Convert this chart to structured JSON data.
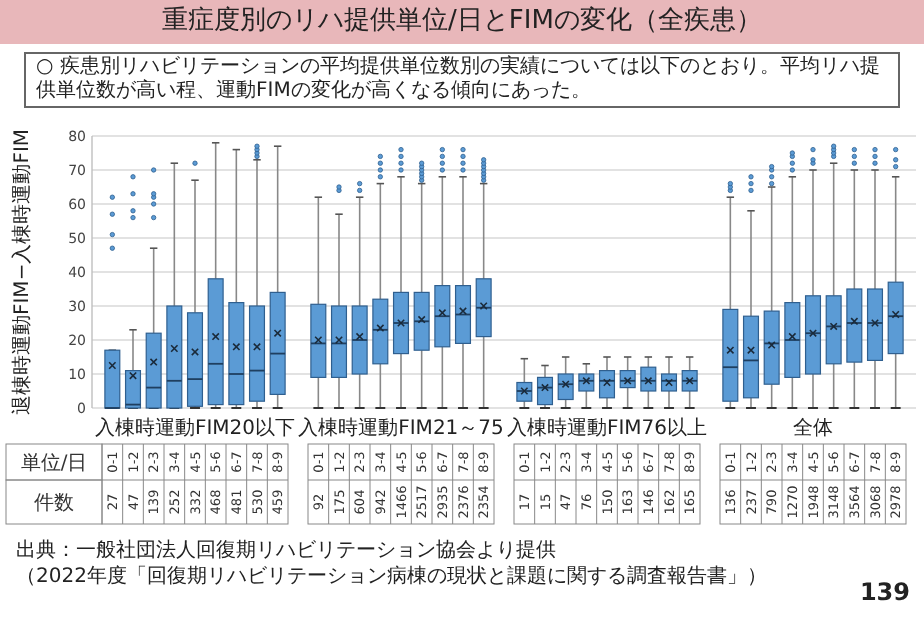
{
  "chart_data": [
    {
      "type": "box",
      "title": "重症度別のリハ提供単位/日とFIMの変化（全疾患）",
      "subtitle": "○ 疾患別リハビリテーションの平均提供単位数別の実績については以下のとおり。平均リハ提供単位数が高い程、運動FIMの変化が高くなる傾向にあった。",
      "xlabel": "入棟時運動FIM20以下",
      "ylabel": "退棟時運動FIM−入棟時運動FIM",
      "categories": [
        "0-1",
        "1-2",
        "2-3",
        "3-4",
        "4-5",
        "5-6",
        "6-7",
        "7-8",
        "8-9"
      ],
      "ylim": [
        0,
        80
      ],
      "yticks": [
        0,
        10,
        20,
        30,
        40,
        50,
        60,
        70,
        80
      ],
      "grid": "y",
      "series": [
        {
          "color": "#5b9bd5",
          "boxes": [
            {
              "low": 0,
              "q1": 0,
              "median": 0,
              "q3": 17,
              "high": 17,
              "mean": 12.5,
              "outliers": [
                47,
                51,
                57,
                62
              ]
            },
            {
              "low": 0,
              "q1": 0,
              "median": 1,
              "q3": 11,
              "high": 23,
              "mean": 9.5,
              "outliers": [
                56,
                58,
                63,
                68
              ]
            },
            {
              "low": 0,
              "q1": 0,
              "median": 6,
              "q3": 22,
              "high": 47,
              "mean": 13.5,
              "outliers": [
                56,
                60,
                62,
                63,
                70
              ]
            },
            {
              "low": 0,
              "q1": 0,
              "median": 8,
              "q3": 30,
              "high": 72,
              "mean": 17.5
            },
            {
              "low": 0,
              "q1": 0.5,
              "median": 8.5,
              "q3": 28,
              "high": 67,
              "mean": 16.5,
              "outliers": [
                72
              ]
            },
            {
              "low": 0,
              "q1": 1,
              "median": 13,
              "q3": 38,
              "high": 78,
              "mean": 21
            },
            {
              "low": 0,
              "q1": 1,
              "median": 10,
              "q3": 31,
              "high": 76,
              "mean": 18
            },
            {
              "low": 0,
              "q1": 2,
              "median": 11,
              "q3": 30,
              "high": 73,
              "mean": 18,
              "outliers": [
                74,
                75,
                76,
                77
              ]
            },
            {
              "low": 0,
              "q1": 4,
              "median": 16,
              "q3": 34,
              "high": 77,
              "mean": 22
            }
          ]
        }
      ],
      "annotations": [
        "単位/日",
        "件数",
        "27",
        "47",
        "139",
        "252",
        "332",
        "468",
        "481",
        "530",
        "459"
      ]
    },
    {
      "type": "box",
      "xlabel": "入棟時運動FIM21～75",
      "categories": [
        "0-1",
        "1-2",
        "2-3",
        "3-4",
        "4-5",
        "5-6",
        "6-7",
        "7-8",
        "8-9"
      ],
      "ylim": [
        0,
        80
      ],
      "yticks": [
        0,
        10,
        20,
        30,
        40,
        50,
        60,
        70,
        80
      ],
      "grid": "y",
      "tick_labels": "x",
      "series": [
        {
          "color": "#5b9bd5",
          "boxes": [
            {
              "low": 0,
              "q1": 9,
              "median": 19,
              "q3": 30.5,
              "high": 62,
              "mean": 20
            },
            {
              "low": 0,
              "q1": 9,
              "median": 19,
              "q3": 30,
              "high": 57,
              "mean": 20,
              "outliers": [
                64,
                65
              ]
            },
            {
              "low": 0,
              "q1": 10,
              "median": 20,
              "q3": 30,
              "high": 62,
              "mean": 21,
              "outliers": [
                64,
                66
              ]
            },
            {
              "low": 0,
              "q1": 13,
              "median": 23,
              "q3": 32,
              "high": 66,
              "mean": 23.5,
              "outliers": [
                68,
                70,
                72,
                74
              ]
            },
            {
              "low": 0,
              "q1": 16,
              "median": 25,
              "q3": 34,
              "high": 68,
              "mean": 25,
              "outliers": [
                70,
                72,
                74,
                76
              ]
            },
            {
              "low": 0,
              "q1": 17,
              "median": 25.5,
              "q3": 34,
              "high": 66,
              "mean": 26,
              "outliers": [
                67,
                68,
                69,
                70,
                71,
                72
              ]
            },
            {
              "low": 0,
              "q1": 18,
              "median": 27,
              "q3": 36,
              "high": 68,
              "mean": 28,
              "outliers": [
                70,
                72,
                74,
                76
              ]
            },
            {
              "low": 0,
              "q1": 19,
              "median": 27.5,
              "q3": 36,
              "high": 68,
              "mean": 28.5,
              "outliers": [
                70,
                72,
                74,
                76
              ]
            },
            {
              "low": 0,
              "q1": 21,
              "median": 29.5,
              "q3": 38,
              "high": 66,
              "mean": 30,
              "outliers": [
                67,
                68,
                69,
                70,
                71,
                72,
                73
              ]
            }
          ]
        }
      ],
      "annotations": [
        "92",
        "175",
        "604",
        "942",
        "1466",
        "2517",
        "2935",
        "2376",
        "2354"
      ]
    },
    {
      "type": "box",
      "xlabel": "入棟時運動FIM76以上",
      "categories": [
        "0-1",
        "1-2",
        "2-3",
        "3-4",
        "4-5",
        "5-6",
        "6-7",
        "7-8",
        "8-9"
      ],
      "ylim": [
        0,
        80
      ],
      "yticks": [
        0,
        10,
        20,
        30,
        40,
        50,
        60,
        70,
        80
      ],
      "grid": "y",
      "tick_labels": "x",
      "series": [
        {
          "color": "#5b9bd5",
          "boxes": [
            {
              "low": 0,
              "q1": 2,
              "median": 5,
              "q3": 7.5,
              "high": 14.5,
              "mean": 5
            },
            {
              "low": 0,
              "q1": 1,
              "median": 6,
              "q3": 9,
              "high": 12.5,
              "mean": 6
            },
            {
              "low": 0,
              "q1": 2.5,
              "median": 7,
              "q3": 10,
              "high": 15,
              "mean": 7
            },
            {
              "low": 0,
              "q1": 5,
              "median": 8,
              "q3": 10,
              "high": 13,
              "mean": 8
            },
            {
              "low": 0,
              "q1": 3,
              "median": 8,
              "q3": 11,
              "high": 15,
              "mean": 7.5
            },
            {
              "low": 0,
              "q1": 6,
              "median": 8,
              "q3": 11,
              "high": 15,
              "mean": 8
            },
            {
              "low": 0,
              "q1": 5,
              "median": 8,
              "q3": 12,
              "high": 15,
              "mean": 8
            },
            {
              "low": 0,
              "q1": 5,
              "median": 8,
              "q3": 10,
              "high": 15,
              "mean": 7.5
            },
            {
              "low": 0,
              "q1": 5,
              "median": 8,
              "q3": 11,
              "high": 15,
              "mean": 8
            }
          ]
        }
      ],
      "annotations": [
        "17",
        "15",
        "47",
        "76",
        "150",
        "163",
        "146",
        "162",
        "165"
      ]
    },
    {
      "type": "box",
      "xlabel": "全体",
      "categories": [
        "0-1",
        "1-2",
        "2-3",
        "3-4",
        "4-5",
        "5-6",
        "6-7",
        "7-8",
        "8-9"
      ],
      "ylim": [
        0,
        80
      ],
      "yticks": [
        0,
        10,
        20,
        30,
        40,
        50,
        60,
        70,
        80
      ],
      "grid": "y",
      "tick_labels": "x",
      "series": [
        {
          "color": "#5b9bd5",
          "boxes": [
            {
              "low": 0,
              "q1": 2,
              "median": 12,
              "q3": 29,
              "high": 62,
              "mean": 17,
              "outliers": [
                64,
                65,
                66
              ]
            },
            {
              "low": 0,
              "q1": 3,
              "median": 14,
              "q3": 27,
              "high": 58,
              "mean": 17,
              "outliers": [
                64,
                66,
                68
              ]
            },
            {
              "low": 0,
              "q1": 7,
              "median": 19,
              "q3": 28.5,
              "high": 65,
              "mean": 18.5,
              "outliers": [
                66,
                68,
                70,
                71
              ]
            },
            {
              "low": 0,
              "q1": 9,
              "median": 20,
              "q3": 31,
              "high": 68,
              "mean": 21,
              "outliers": [
                70,
                72,
                74,
                75
              ]
            },
            {
              "low": 0,
              "q1": 10,
              "median": 22,
              "q3": 33,
              "high": 70,
              "mean": 22,
              "outliers": [
                72,
                73,
                76
              ]
            },
            {
              "low": 0,
              "q1": 13,
              "median": 24,
              "q3": 33,
              "high": 72,
              "mean": 24,
              "outliers": [
                74,
                75,
                76,
                77
              ]
            },
            {
              "low": 0,
              "q1": 13.5,
              "median": 25,
              "q3": 35,
              "high": 70,
              "mean": 25.5,
              "outliers": [
                72,
                74,
                76
              ]
            },
            {
              "low": 0,
              "q1": 14,
              "median": 25,
              "q3": 35,
              "high": 70,
              "mean": 25,
              "outliers": [
                72,
                74,
                76
              ]
            },
            {
              "low": 0,
              "q1": 16,
              "median": 27,
              "q3": 37,
              "high": 68,
              "mean": 27.5,
              "outliers": [
                71,
                73,
                76
              ]
            }
          ]
        }
      ],
      "annotations": [
        "136",
        "237",
        "790",
        "1270",
        "1948",
        "3148",
        "3564",
        "3068",
        "2978",
        "出典：一般社団法人回復期リハビリテーション協会より提供",
        "（2022年度「回復期リハビリテーション病棟の現状と課題に関する調査報告書」）",
        "139"
      ]
    }
  ]
}
